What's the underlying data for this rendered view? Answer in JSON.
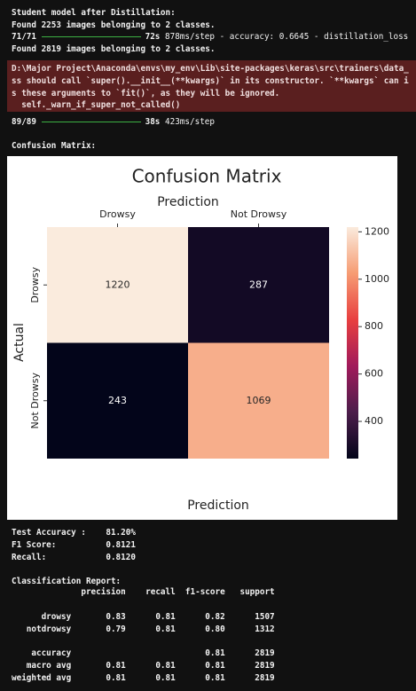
{
  "output": {
    "intro": [
      "Student model after Distillation:",
      "Found 2253 images belonging to 2 classes."
    ],
    "progress1": {
      "steps": "71/71",
      "time": "72s",
      "rest": "878ms/step - accuracy: 0.6645 - distillation_loss"
    },
    "found2": "Found 2819 images belonging to 2 classes.",
    "warning": [
      "D:\\Major Project\\Anaconda\\envs\\my_env\\Lib\\site-packages\\keras\\src\\trainers\\data_",
      "ss should call `super().__init__(**kwargs)` in its constructor. `**kwargs` can i",
      "s these arguments to `fit()`, as they will be ignored.",
      "  self._warn_if_super_not_called()"
    ],
    "progress2": {
      "steps": "89/89",
      "time": "38s",
      "rest": "423ms/step"
    },
    "cm_heading": "Confusion Matrix:",
    "metrics": [
      "Test Accuracy :    81.20%",
      "F1 Score:          0.8121",
      "Recall:            0.8120"
    ],
    "report_title": "Classification Report:",
    "report_header": "              precision    recall  f1-score   support",
    "report_classes": [
      "      drowsy       0.83      0.81      0.82      1507",
      "   notdrowsy       0.79      0.81      0.80      1312"
    ],
    "report_totals": [
      "    accuracy                           0.81      2819",
      "   macro avg       0.81      0.81      0.81      2819",
      "weighted avg       0.81      0.81      0.81      2819"
    ]
  },
  "chart_data": {
    "type": "heatmap",
    "title": "Confusion Matrix",
    "xlabel_top": "Prediction",
    "xlabel": "Prediction",
    "ylabel": "Actual",
    "x_categories": [
      "Drowsy",
      "Not Drowsy"
    ],
    "y_categories": [
      "Drowsy",
      "Not Drowsy"
    ],
    "matrix": [
      [
        1220,
        287
      ],
      [
        243,
        1069
      ]
    ],
    "clim": [
      243,
      1220
    ],
    "cticks": [
      400,
      600,
      800,
      1000,
      1200
    ],
    "colormap": "rocket"
  }
}
